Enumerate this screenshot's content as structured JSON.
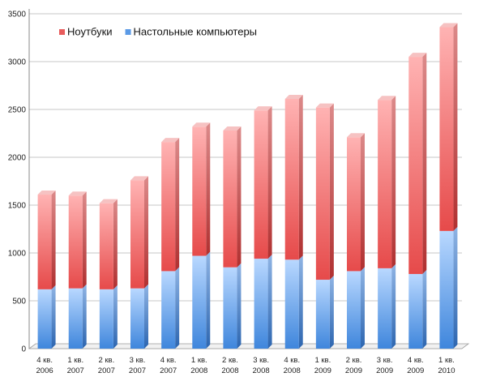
{
  "chart_data": {
    "type": "bar",
    "stacked": true,
    "categories": [
      [
        "4 кв.",
        "2006"
      ],
      [
        "1 кв.",
        "2007"
      ],
      [
        "2 кв.",
        "2007"
      ],
      [
        "3 кв.",
        "2007"
      ],
      [
        "4 кв.",
        "2007"
      ],
      [
        "1 кв.",
        "2008"
      ],
      [
        "2 кв.",
        "2008"
      ],
      [
        "3 кв.",
        "2008"
      ],
      [
        "4 кв.",
        "2008"
      ],
      [
        "1 кв.",
        "2009"
      ],
      [
        "2 кв.",
        "2009"
      ],
      [
        "3 кв.",
        "2009"
      ],
      [
        "4 кв.",
        "2009"
      ],
      [
        "1 кв.",
        "2010"
      ]
    ],
    "series": [
      {
        "name": "Настольные компьютеры",
        "color": "#7fb2f0",
        "values": [
          620,
          630,
          620,
          630,
          810,
          970,
          850,
          940,
          930,
          720,
          810,
          840,
          780,
          1230
        ]
      },
      {
        "name": "Ноутбуки",
        "color": "#f08a8a",
        "values": [
          990,
          970,
          900,
          1130,
          1350,
          1350,
          1430,
          1550,
          1680,
          1800,
          1400,
          1760,
          2270,
          2130
        ]
      }
    ],
    "legend_order": [
      1,
      0
    ],
    "ylim": [
      0,
      3500
    ],
    "yticks": [
      0,
      500,
      1000,
      1500,
      2000,
      2500,
      3000,
      3500
    ],
    "grid": true,
    "legend": "top-left"
  }
}
